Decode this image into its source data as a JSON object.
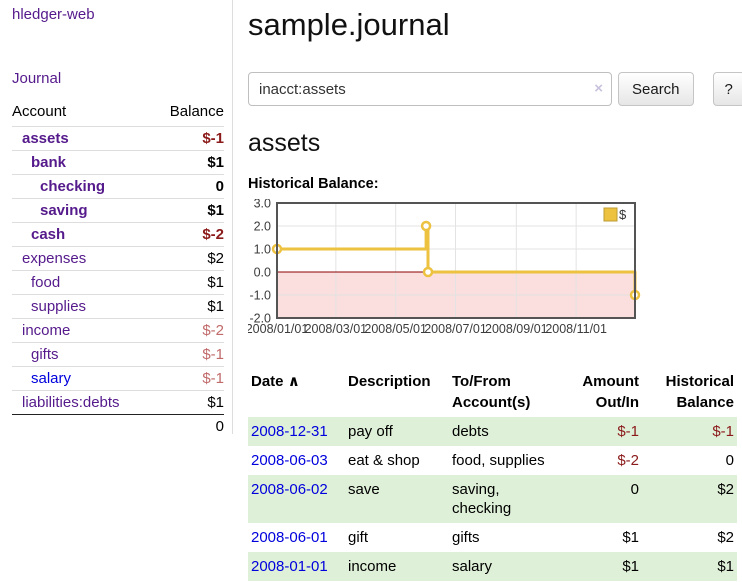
{
  "brand": "hledger-web",
  "sidebar": {
    "journal_link": "Journal",
    "accounts_header": {
      "account": "Account",
      "balance": "Balance"
    },
    "accounts": [
      {
        "name": "assets",
        "depth": 0,
        "bold": true,
        "balance": "$-1",
        "balance_class": "neg-strong"
      },
      {
        "name": "bank",
        "depth": 1,
        "bold": true,
        "balance": "$1",
        "balance_class": ""
      },
      {
        "name": "checking",
        "depth": 2,
        "bold": true,
        "balance": "0",
        "balance_class": ""
      },
      {
        "name": "saving",
        "depth": 2,
        "bold": true,
        "balance": "$1",
        "balance_class": ""
      },
      {
        "name": "cash",
        "depth": 1,
        "bold": true,
        "balance": "$-2",
        "balance_class": "neg-strong"
      },
      {
        "name": "expenses",
        "depth": 0,
        "bold": false,
        "balance": "$2",
        "balance_class": ""
      },
      {
        "name": "food",
        "depth": 1,
        "bold": false,
        "balance": "$1",
        "balance_class": ""
      },
      {
        "name": "supplies",
        "depth": 1,
        "bold": false,
        "balance": "$1",
        "balance_class": ""
      },
      {
        "name": "income",
        "depth": 0,
        "bold": false,
        "balance": "$-2",
        "balance_class": "neg-dim"
      },
      {
        "name": "gifts",
        "depth": 1,
        "bold": false,
        "balance": "$-1",
        "balance_class": "neg-dim"
      },
      {
        "name": "salary",
        "depth": 1,
        "bold": false,
        "balance": "$-1",
        "balance_class": "neg-dim",
        "link_color": "blue"
      },
      {
        "name": "liabilities:debts",
        "depth": 0,
        "bold": false,
        "balance": "$1",
        "balance_class": ""
      }
    ],
    "total": "0"
  },
  "header": {
    "title": "sample.journal"
  },
  "search": {
    "value": "inacct:assets",
    "clear_icon": "×",
    "button_label": "Search",
    "help_label": "?"
  },
  "account_page": {
    "heading": "assets",
    "chart_label": "Historical Balance:"
  },
  "chart_data": {
    "type": "line",
    "step": true,
    "title": "Historical Balance",
    "series": [
      {
        "name": "$",
        "color": "#edc240",
        "points": [
          [
            "2008-01-01",
            1
          ],
          [
            "2008-06-01",
            2
          ],
          [
            "2008-06-03",
            0
          ],
          [
            "2008-12-31",
            -1
          ]
        ]
      }
    ],
    "x_ticks": [
      "2008/01/01",
      "2008/03/01",
      "2008/05/01",
      "2008/07/01",
      "2008/09/01",
      "2008/11/01"
    ],
    "y_ticks": [
      3.0,
      2.0,
      1.0,
      0.0,
      -1.0,
      -2.0
    ],
    "ylim": [
      -2,
      3
    ],
    "x_range": [
      "2008-01-01",
      "2008-12-31"
    ],
    "legend": "$",
    "legend_position": "top-right",
    "grid": true,
    "grid_color": "#e3e3e3",
    "frame_color": "#545454",
    "tick_color": "#3c3c3c",
    "zero_line_color": "#8b0000",
    "negative_region_color": "#fbdede"
  },
  "register": {
    "columns": {
      "date": "Date",
      "sort_icon": "∧",
      "description": "Description",
      "tofrom": "To/From Account(s)",
      "amount": "Amount Out/In",
      "balance": "Historical Balance"
    },
    "rows": [
      {
        "date": "2008-12-31",
        "description": "pay off",
        "accounts": "debts",
        "amount": "$-1",
        "amount_class": "neg",
        "balance": "$-1",
        "balance_class": "neg",
        "shade": true
      },
      {
        "date": "2008-06-03",
        "description": "eat & shop",
        "accounts": "food, supplies",
        "amount": "$-2",
        "amount_class": "neg",
        "balance": "0",
        "balance_class": "",
        "shade": false
      },
      {
        "date": "2008-06-02",
        "description": "save",
        "accounts": "saving, checking",
        "amount": "0",
        "amount_class": "",
        "balance": "$2",
        "balance_class": "",
        "shade": true
      },
      {
        "date": "2008-06-01",
        "description": "gift",
        "accounts": "gifts",
        "amount": "$1",
        "amount_class": "",
        "balance": "$2",
        "balance_class": "",
        "shade": false
      },
      {
        "date": "2008-01-01",
        "description": "income",
        "accounts": "salary",
        "amount": "$1",
        "amount_class": "",
        "balance": "$1",
        "balance_class": "",
        "shade": true
      }
    ]
  }
}
